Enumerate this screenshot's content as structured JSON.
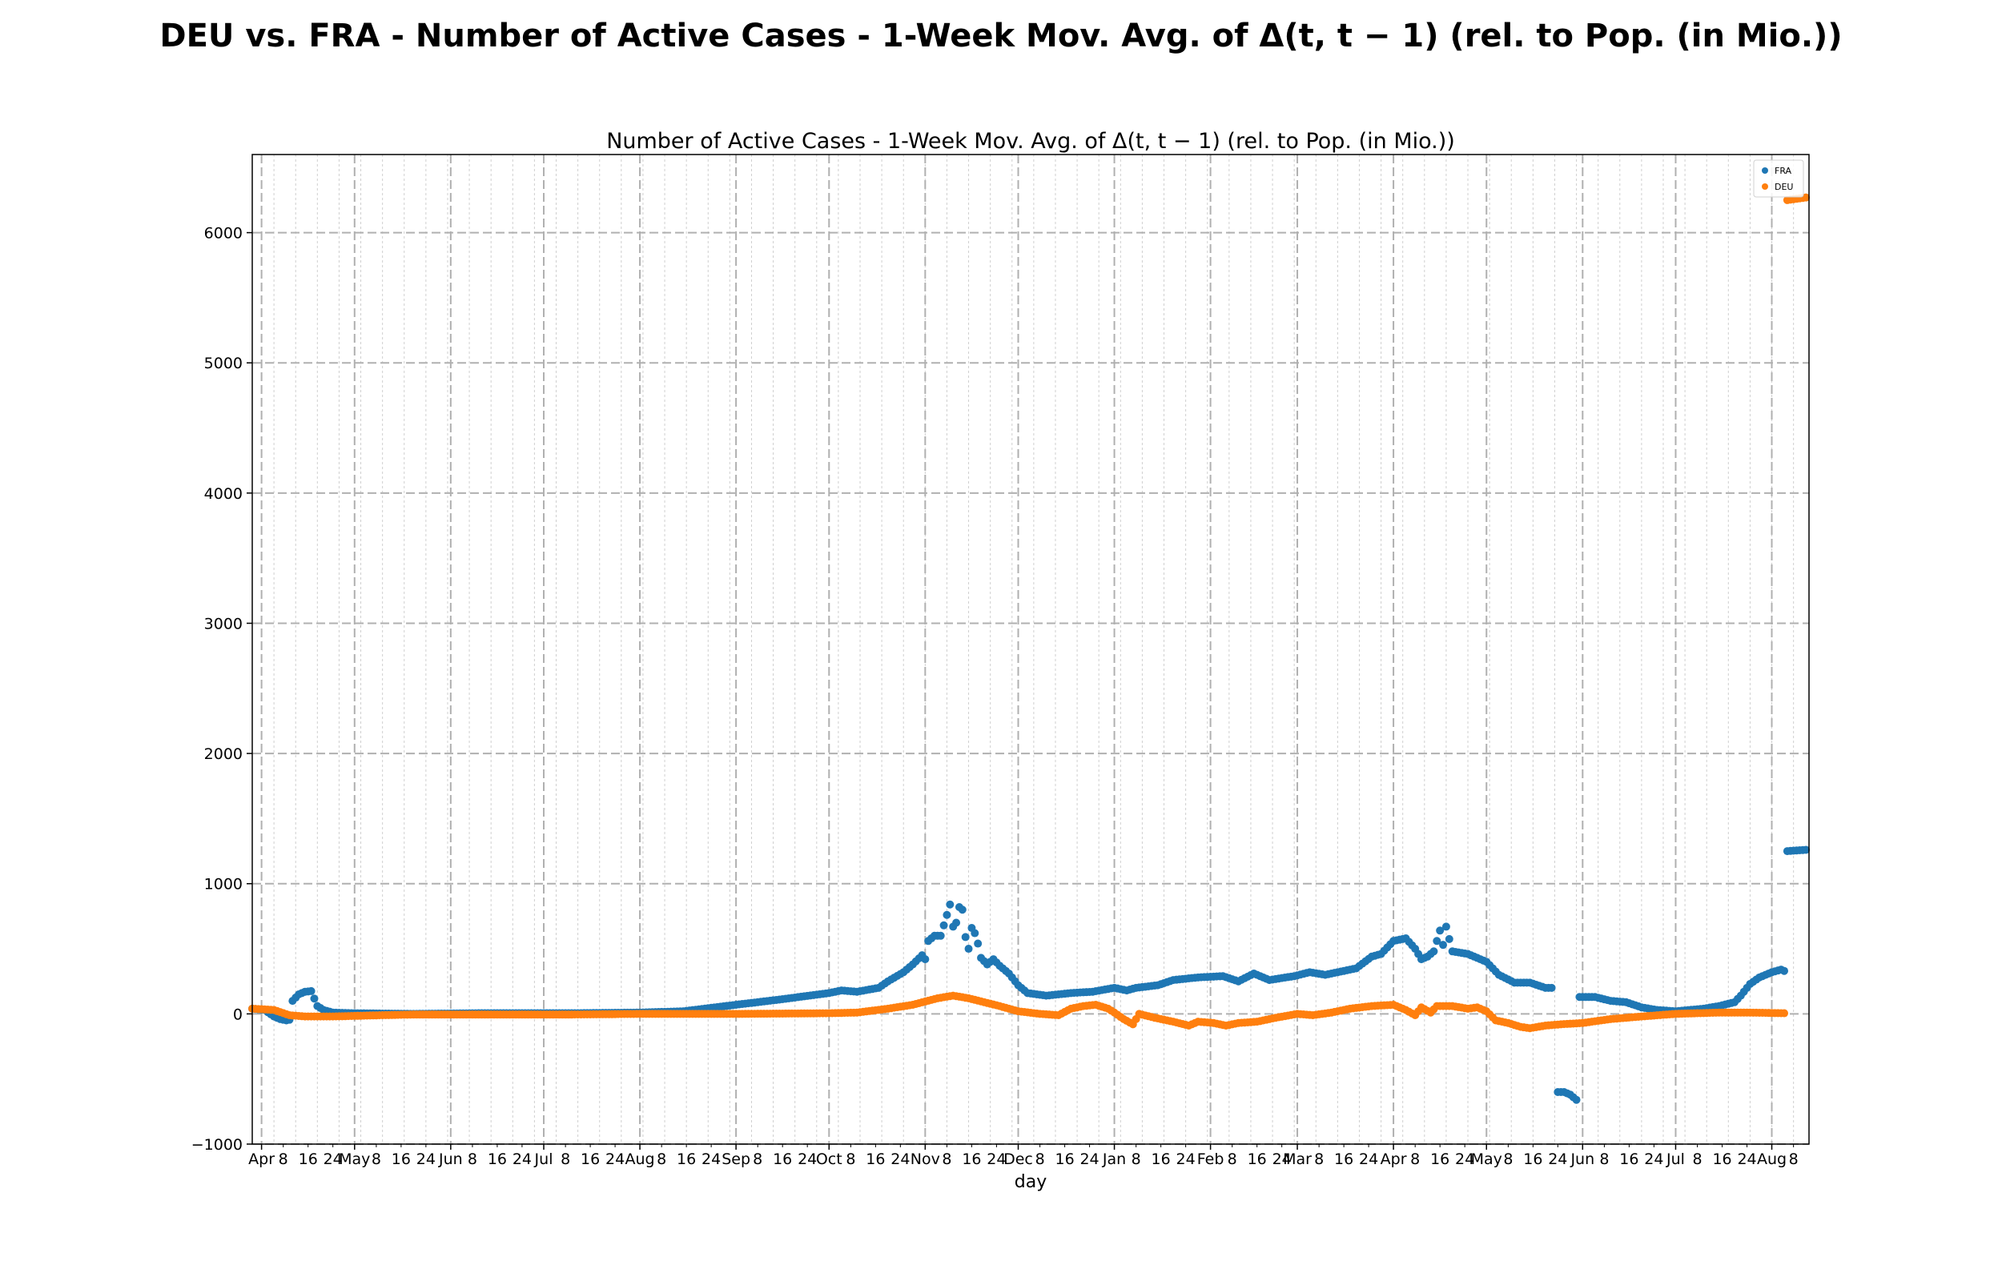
{
  "figure_title": "DEU vs. FRA - Number of Active Cases - 1-Week Mov. Avg. of Δ(t, t − 1) (rel. to Pop. (in Mio.))",
  "chart_data": {
    "type": "scatter",
    "title": "Number of Active Cases - 1-Week Mov. Avg. of Δ(t, t − 1) (rel. to Pop. (in Mio.))",
    "xlabel": "day",
    "ylabel": "",
    "xlim": [
      "2020-03-29",
      "2021-08-13"
    ],
    "ylim": [
      -1000,
      6600
    ],
    "yticks": [
      -1000,
      0,
      1000,
      2000,
      3000,
      4000,
      5000,
      6000
    ],
    "ytick_labels": [
      "−1000",
      "0",
      "1000",
      "2000",
      "3000",
      "4000",
      "5000",
      "6000"
    ],
    "grid": true,
    "legend_position": "top-right",
    "x_month_ticks": [
      {
        "date": "2020-04-01",
        "label": "Apr"
      },
      {
        "date": "2020-05-01",
        "label": "May"
      },
      {
        "date": "2020-06-01",
        "label": "Jun"
      },
      {
        "date": "2020-07-01",
        "label": "Jul"
      },
      {
        "date": "2020-08-01",
        "label": "Aug"
      },
      {
        "date": "2020-09-01",
        "label": "Sep"
      },
      {
        "date": "2020-10-01",
        "label": "Oct"
      },
      {
        "date": "2020-11-01",
        "label": "Nov"
      },
      {
        "date": "2020-12-01",
        "label": "Dec"
      },
      {
        "date": "2021-01-01",
        "label": "Jan"
      },
      {
        "date": "2021-02-01",
        "label": "Feb"
      },
      {
        "date": "2021-03-01",
        "label": "Mar"
      },
      {
        "date": "2021-04-01",
        "label": "Apr"
      },
      {
        "date": "2021-05-01",
        "label": "May"
      },
      {
        "date": "2021-06-01",
        "label": "Jun"
      },
      {
        "date": "2021-07-01",
        "label": "Jul"
      },
      {
        "date": "2021-08-01",
        "label": "Aug"
      }
    ],
    "x_minor_tick_labels": [
      "8",
      "16",
      "24"
    ],
    "series": [
      {
        "name": "FRA",
        "color": "#1f77b4",
        "points": [
          [
            "2020-03-29",
            40
          ],
          [
            "2020-04-02",
            30
          ],
          [
            "2020-04-05",
            -20
          ],
          [
            "2020-04-07",
            -40
          ],
          [
            "2020-04-09",
            -50
          ],
          [
            "2020-04-10",
            -45
          ],
          [
            "2020-04-11",
            100
          ],
          [
            "2020-04-13",
            150
          ],
          [
            "2020-04-15",
            170
          ],
          [
            "2020-04-17",
            175
          ],
          [
            "2020-04-19",
            60
          ],
          [
            "2020-04-21",
            30
          ],
          [
            "2020-04-24",
            10
          ],
          [
            "2020-05-01",
            5
          ],
          [
            "2020-05-20",
            0
          ],
          [
            "2020-06-10",
            5
          ],
          [
            "2020-07-10",
            5
          ],
          [
            "2020-08-01",
            10
          ],
          [
            "2020-08-15",
            20
          ],
          [
            "2020-09-01",
            70
          ],
          [
            "2020-09-15",
            110
          ],
          [
            "2020-10-01",
            160
          ],
          [
            "2020-10-05",
            180
          ],
          [
            "2020-10-10",
            170
          ],
          [
            "2020-10-17",
            200
          ],
          [
            "2020-10-20",
            250
          ],
          [
            "2020-10-25",
            320
          ],
          [
            "2020-10-28",
            380
          ],
          [
            "2020-10-31",
            450
          ],
          [
            "2020-11-01",
            420
          ],
          [
            "2020-11-02",
            560
          ],
          [
            "2020-11-04",
            600
          ],
          [
            "2020-11-06",
            600
          ],
          [
            "2020-11-07",
            680
          ],
          [
            "2020-11-08",
            760
          ],
          [
            "2020-11-09",
            840
          ],
          [
            "2020-11-10",
            670
          ],
          [
            "2020-11-11",
            700
          ],
          [
            "2020-11-12",
            820
          ],
          [
            "2020-11-13",
            800
          ],
          [
            "2020-11-14",
            590
          ],
          [
            "2020-11-15",
            500
          ],
          [
            "2020-11-16",
            660
          ],
          [
            "2020-11-17",
            620
          ],
          [
            "2020-11-18",
            540
          ],
          [
            "2020-11-19",
            430
          ],
          [
            "2020-11-21",
            380
          ],
          [
            "2020-11-23",
            420
          ],
          [
            "2020-11-25",
            370
          ],
          [
            "2020-11-28",
            310
          ],
          [
            "2020-12-01",
            220
          ],
          [
            "2020-12-04",
            160
          ],
          [
            "2020-12-10",
            140
          ],
          [
            "2020-12-18",
            160
          ],
          [
            "2020-12-25",
            170
          ],
          [
            "2021-01-01",
            200
          ],
          [
            "2021-01-05",
            180
          ],
          [
            "2021-01-08",
            200
          ],
          [
            "2021-01-15",
            220
          ],
          [
            "2021-01-20",
            260
          ],
          [
            "2021-01-28",
            280
          ],
          [
            "2021-02-05",
            290
          ],
          [
            "2021-02-10",
            250
          ],
          [
            "2021-02-15",
            310
          ],
          [
            "2021-02-20",
            260
          ],
          [
            "2021-02-28",
            290
          ],
          [
            "2021-03-05",
            320
          ],
          [
            "2021-03-10",
            300
          ],
          [
            "2021-03-20",
            350
          ],
          [
            "2021-03-25",
            440
          ],
          [
            "2021-03-28",
            460
          ],
          [
            "2021-04-01",
            560
          ],
          [
            "2021-04-05",
            580
          ],
          [
            "2021-04-08",
            500
          ],
          [
            "2021-04-10",
            420
          ],
          [
            "2021-04-12",
            440
          ],
          [
            "2021-04-14",
            480
          ],
          [
            "2021-04-16",
            640
          ],
          [
            "2021-04-17",
            530
          ],
          [
            "2021-04-18",
            670
          ],
          [
            "2021-04-20",
            480
          ],
          [
            "2021-04-25",
            460
          ],
          [
            "2021-05-01",
            400
          ],
          [
            "2021-05-05",
            300
          ],
          [
            "2021-05-10",
            240
          ],
          [
            "2021-05-15",
            240
          ],
          [
            "2021-05-20",
            200
          ],
          [
            "2021-05-22",
            200
          ],
          [
            "2021-05-24",
            -600
          ],
          [
            "2021-05-26",
            -600
          ],
          [
            "2021-05-28",
            -620
          ],
          [
            "2021-05-30",
            -660
          ],
          [
            "2021-05-31",
            130
          ],
          [
            "2021-06-05",
            130
          ],
          [
            "2021-06-10",
            100
          ],
          [
            "2021-06-15",
            90
          ],
          [
            "2021-06-20",
            50
          ],
          [
            "2021-06-25",
            30
          ],
          [
            "2021-07-01",
            20
          ],
          [
            "2021-07-10",
            40
          ],
          [
            "2021-07-15",
            60
          ],
          [
            "2021-07-20",
            90
          ],
          [
            "2021-07-22",
            140
          ],
          [
            "2021-07-25",
            230
          ],
          [
            "2021-07-28",
            280
          ],
          [
            "2021-08-01",
            320
          ],
          [
            "2021-08-04",
            340
          ],
          [
            "2021-08-05",
            330
          ],
          [
            "2021-08-06",
            1250
          ],
          [
            "2021-08-09",
            1255
          ],
          [
            "2021-08-12",
            1260
          ]
        ]
      },
      {
        "name": "DEU",
        "color": "#ff7f0e",
        "points": [
          [
            "2020-03-29",
            40
          ],
          [
            "2020-04-05",
            30
          ],
          [
            "2020-04-10",
            -10
          ],
          [
            "2020-04-15",
            -20
          ],
          [
            "2020-04-24",
            -20
          ],
          [
            "2020-05-10",
            -10
          ],
          [
            "2020-05-20",
            -5
          ],
          [
            "2020-06-10",
            -5
          ],
          [
            "2020-07-10",
            -5
          ],
          [
            "2020-08-01",
            0
          ],
          [
            "2020-09-01",
            0
          ],
          [
            "2020-10-01",
            5
          ],
          [
            "2020-10-10",
            10
          ],
          [
            "2020-10-20",
            40
          ],
          [
            "2020-10-28",
            70
          ],
          [
            "2020-11-05",
            120
          ],
          [
            "2020-11-10",
            140
          ],
          [
            "2020-11-15",
            120
          ],
          [
            "2020-11-20",
            90
          ],
          [
            "2020-11-25",
            60
          ],
          [
            "2020-12-01",
            20
          ],
          [
            "2020-12-08",
            0
          ],
          [
            "2020-12-14",
            -10
          ],
          [
            "2020-12-18",
            40
          ],
          [
            "2020-12-22",
            60
          ],
          [
            "2020-12-26",
            70
          ],
          [
            "2020-12-30",
            40
          ],
          [
            "2021-01-01",
            10
          ],
          [
            "2021-01-04",
            -40
          ],
          [
            "2021-01-07",
            -80
          ],
          [
            "2021-01-09",
            0
          ],
          [
            "2021-01-14",
            -30
          ],
          [
            "2021-01-20",
            -60
          ],
          [
            "2021-01-25",
            -90
          ],
          [
            "2021-01-28",
            -60
          ],
          [
            "2021-02-02",
            -70
          ],
          [
            "2021-02-06",
            -90
          ],
          [
            "2021-02-10",
            -70
          ],
          [
            "2021-02-16",
            -60
          ],
          [
            "2021-02-22",
            -30
          ],
          [
            "2021-03-01",
            0
          ],
          [
            "2021-03-06",
            -10
          ],
          [
            "2021-03-12",
            10
          ],
          [
            "2021-03-18",
            40
          ],
          [
            "2021-03-25",
            60
          ],
          [
            "2021-04-01",
            70
          ],
          [
            "2021-04-05",
            30
          ],
          [
            "2021-04-08",
            -10
          ],
          [
            "2021-04-10",
            50
          ],
          [
            "2021-04-13",
            10
          ],
          [
            "2021-04-15",
            60
          ],
          [
            "2021-04-20",
            60
          ],
          [
            "2021-04-25",
            40
          ],
          [
            "2021-04-28",
            50
          ],
          [
            "2021-05-01",
            20
          ],
          [
            "2021-05-04",
            -50
          ],
          [
            "2021-05-08",
            -70
          ],
          [
            "2021-05-12",
            -100
          ],
          [
            "2021-05-15",
            -110
          ],
          [
            "2021-05-20",
            -90
          ],
          [
            "2021-05-25",
            -80
          ],
          [
            "2021-06-01",
            -70
          ],
          [
            "2021-06-10",
            -40
          ],
          [
            "2021-06-20",
            -20
          ],
          [
            "2021-07-01",
            0
          ],
          [
            "2021-07-15",
            10
          ],
          [
            "2021-07-25",
            10
          ],
          [
            "2021-08-05",
            5
          ],
          [
            "2021-08-06",
            6250
          ],
          [
            "2021-08-09",
            6260
          ],
          [
            "2021-08-12",
            6270
          ]
        ]
      }
    ]
  }
}
